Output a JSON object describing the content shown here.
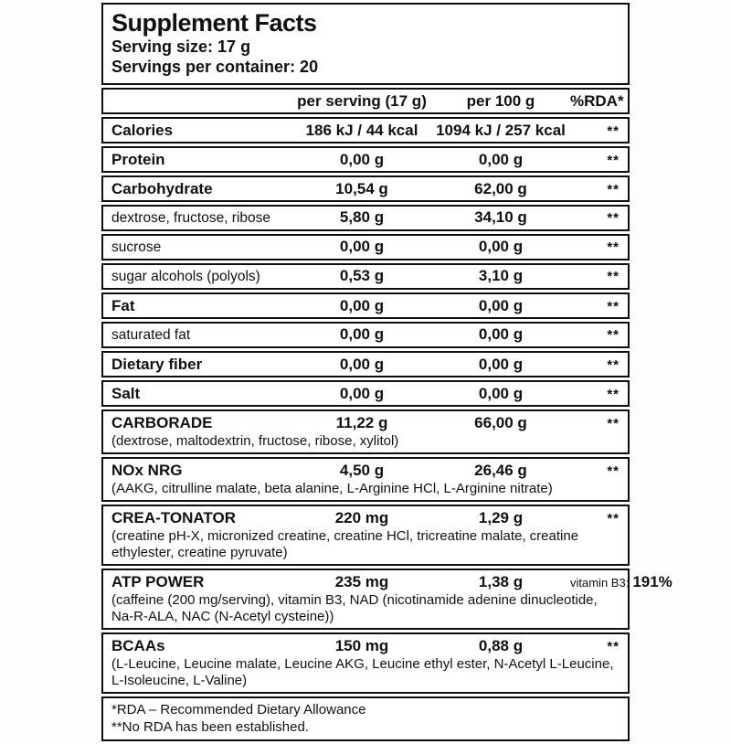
{
  "title": "Supplement Facts",
  "serving_size": "Serving size: 17 g",
  "servings_per_container": "Servings per container: 20",
  "header": {
    "per_serving": "per serving (17 g)",
    "per_100g": "per 100 g",
    "rda": "%RDA*"
  },
  "rows": [
    {
      "label": "Calories",
      "style": "main",
      "serving": "186 kJ / 44 kcal",
      "per100": "1094 kJ / 257 kcal",
      "rda": "**"
    },
    {
      "label": "Protein",
      "style": "main",
      "serving": "0,00 g",
      "per100": "0,00 g",
      "rda": "**"
    },
    {
      "label": "Carbohydrate",
      "style": "main",
      "serving": "10,54 g",
      "per100": "62,00 g",
      "rda": "**"
    },
    {
      "label": "dextrose, fructose, ribose",
      "style": "subrow",
      "serving": "5,80 g",
      "per100": "34,10 g",
      "rda": "**"
    },
    {
      "label": "sucrose",
      "style": "subrow",
      "serving": "0,00 g",
      "per100": "0,00 g",
      "rda": "**"
    },
    {
      "label": "sugar alcohols (polyols)",
      "style": "subrow",
      "serving": "0,53 g",
      "per100": "3,10 g",
      "rda": "**"
    },
    {
      "label": "Fat",
      "style": "main",
      "serving": "0,00 g",
      "per100": "0,00 g",
      "rda": "**"
    },
    {
      "label": "saturated fat",
      "style": "subrow",
      "serving": "0,00 g",
      "per100": "0,00 g",
      "rda": "**"
    },
    {
      "label": "Dietary fiber",
      "style": "main",
      "serving": "0,00 g",
      "per100": "0,00 g",
      "rda": "**"
    },
    {
      "label": "Salt",
      "style": "main",
      "serving": "0,00 g",
      "per100": "0,00 g",
      "rda": "**"
    },
    {
      "label": "CARBORADE",
      "style": "main",
      "serving": "11,22 g",
      "per100": "66,00 g",
      "rda": "**",
      "sub": "(dextrose, maltodextrin, fructose, ribose, xylitol)"
    },
    {
      "label": "NOx NRG",
      "style": "main",
      "serving": "4,50 g",
      "per100": "26,46 g",
      "rda": "**",
      "sub": "(AAKG, citrulline malate, beta alanine, L-Arginine HCl, L-Arginine nitrate)"
    },
    {
      "label": "CREA-TONATOR",
      "style": "main",
      "serving": "220 mg",
      "per100": "1,29 g",
      "rda": "**",
      "sub": "(creatine pH-X, micronized creatine, creatine HCl, tricreatine malate, creatine ethylester, creatine pyruvate)"
    },
    {
      "label": "ATP POWER",
      "style": "main",
      "serving": "235 mg",
      "per100": "1,38 g",
      "rda_label": "vitamin B3:",
      "rda_value": "191%",
      "sub": "(caffeine (200 mg/serving), vitamin B3, NAD (nicotinamide adenine dinucleotide, Na-R-ALA, NAC (N-Acetyl cysteine))"
    },
    {
      "label": "BCAAs",
      "style": "main",
      "serving": "150 mg",
      "per100": "0,88 g",
      "rda": "**",
      "sub": "(L-Leucine, Leucine malate, Leucine AKG, Leucine ethyl ester, N-Acetyl L-Leucine, L-Isoleucine, L-Valine)"
    }
  ],
  "footnotes": {
    "line1": "*RDA – Recommended Dietary Allowance",
    "line2": "**No RDA has been established."
  }
}
